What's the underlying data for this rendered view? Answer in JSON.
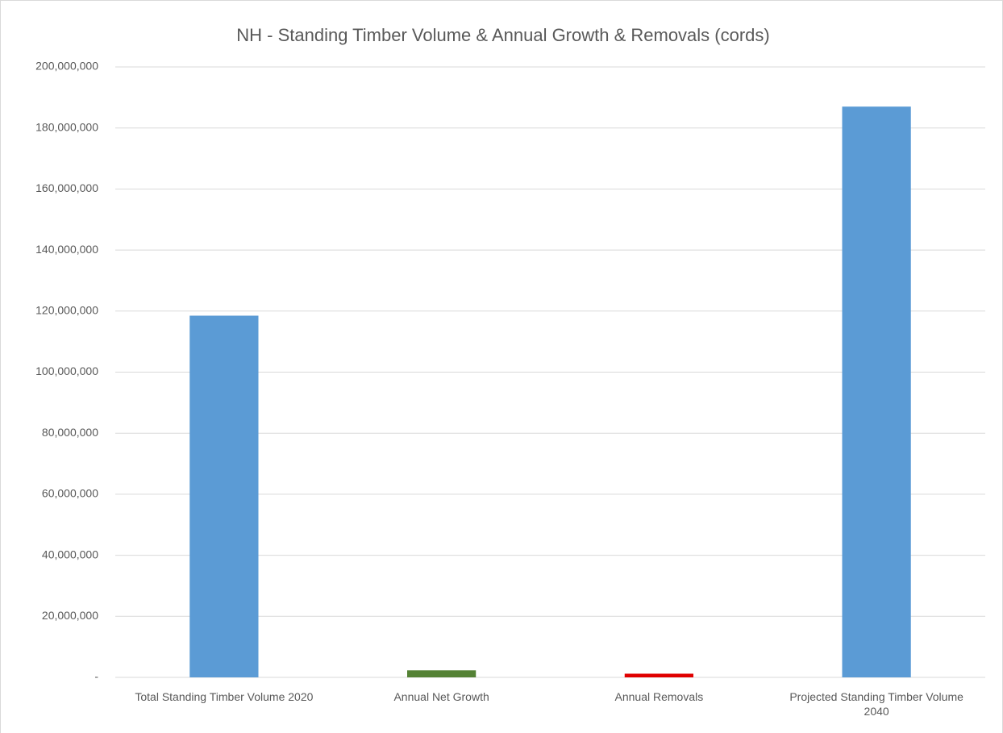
{
  "chart_data": {
    "type": "bar",
    "title": "NH - Standing Timber Volume & Annual Growth & Removals (cords)",
    "categories": [
      "Total Standing Timber Volume 2020",
      "Annual Net Growth",
      "Annual Removals",
      "Projected Standing Timber Volume 2040"
    ],
    "values": [
      118500000,
      2300000,
      1200000,
      187000000
    ],
    "colors": [
      "#5b9bd5",
      "#548235",
      "#e00000",
      "#5b9bd5"
    ],
    "ylim": [
      0,
      200000000
    ],
    "yticks": [
      {
        "value": 0,
        "label": "-"
      },
      {
        "value": 20000000,
        "label": "20,000,000"
      },
      {
        "value": 40000000,
        "label": "40,000,000"
      },
      {
        "value": 60000000,
        "label": "60,000,000"
      },
      {
        "value": 80000000,
        "label": "80,000,000"
      },
      {
        "value": 100000000,
        "label": "100,000,000"
      },
      {
        "value": 120000000,
        "label": "120,000,000"
      },
      {
        "value": 140000000,
        "label": "140,000,000"
      },
      {
        "value": 160000000,
        "label": "160,000,000"
      },
      {
        "value": 180000000,
        "label": "180,000,000"
      },
      {
        "value": 200000000,
        "label": "200,000,000"
      }
    ],
    "grid": true
  }
}
